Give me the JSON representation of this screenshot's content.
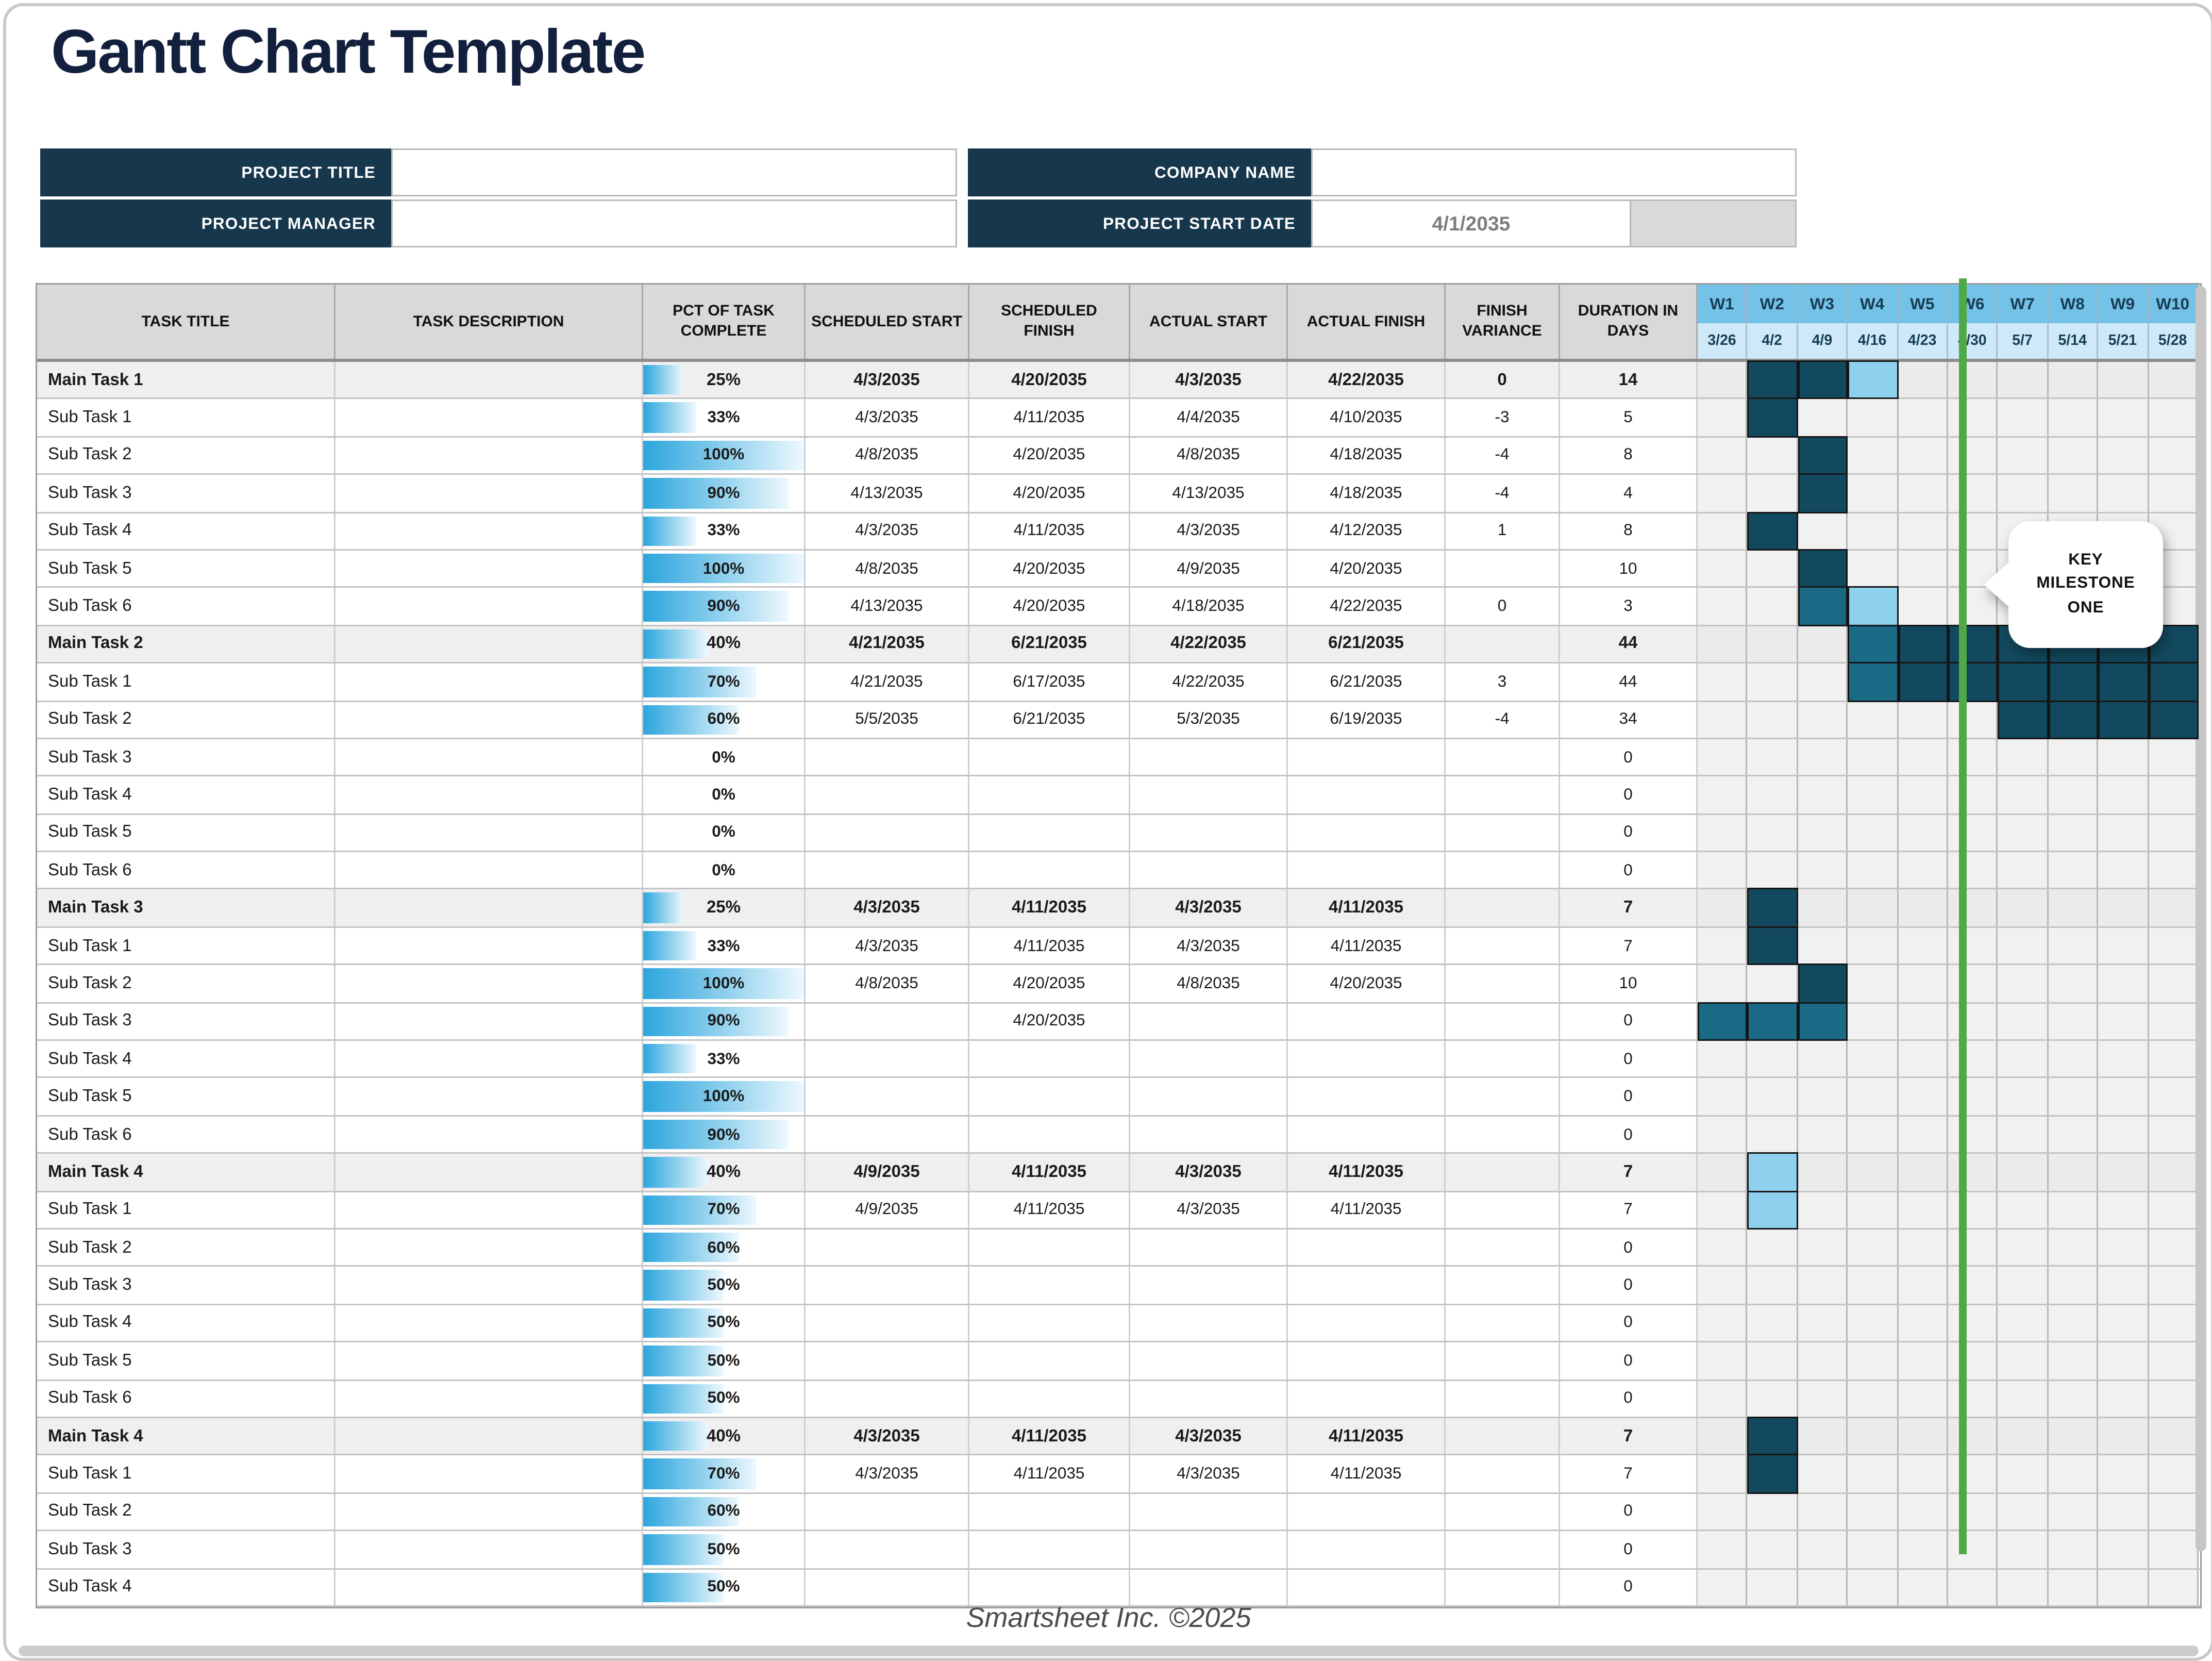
{
  "page": {
    "title": "Gantt Chart Template",
    "footer": "Smartsheet Inc. ©2025"
  },
  "info_panel": {
    "project_title_label": "PROJECT TITLE",
    "project_title_value": "",
    "project_manager_label": "PROJECT MANAGER",
    "project_manager_value": "",
    "company_name_label": "COMPANY NAME",
    "company_name_value": "",
    "project_start_date_label": "PROJECT START DATE",
    "project_start_date_value": "4/1/2035"
  },
  "milestone_callout": {
    "lines": [
      "KEY",
      "MILESTONE",
      "ONE"
    ]
  },
  "colors": {
    "accent_navy": "#17374c",
    "title_navy": "#13203d",
    "bar_dark": "#13495f",
    "bar_teal": "#1a6985",
    "bar_light": "#8ed0ee",
    "week_header_blue": "#74c2e8",
    "week_date_blue": "#cfe9f8",
    "today_line_green": "#4fa946",
    "pct_bar_blue": "#2ca5dd",
    "header_gray": "#d9d9d9"
  },
  "table": {
    "columns": [
      "TASK TITLE",
      "TASK DESCRIPTION",
      "PCT OF TASK COMPLETE",
      "SCHEDULED START",
      "SCHEDULED FINISH",
      "ACTUAL START",
      "ACTUAL FINISH",
      "FINISH VARIANCE",
      "DURATION IN DAYS"
    ],
    "weeks": [
      {
        "label": "W1",
        "date": "3/26"
      },
      {
        "label": "W2",
        "date": "4/2"
      },
      {
        "label": "W3",
        "date": "4/9"
      },
      {
        "label": "W4",
        "date": "4/16"
      },
      {
        "label": "W5",
        "date": "4/23"
      },
      {
        "label": "W6",
        "date": "4/30"
      },
      {
        "label": "W7",
        "date": "5/7"
      },
      {
        "label": "W8",
        "date": "5/14"
      },
      {
        "label": "W9",
        "date": "5/21"
      },
      {
        "label": "W10",
        "date": "5/28"
      }
    ],
    "rows": [
      {
        "title": "Main Task 1",
        "level": "main",
        "pct": 25,
        "sched_start": "4/3/2035",
        "sched_finish": "4/20/2035",
        "actual_start": "4/3/2035",
        "actual_finish": "4/22/2035",
        "variance": "0",
        "duration": "14",
        "bars": [
          [
            2,
            "dark"
          ],
          [
            3,
            "dark"
          ],
          [
            4,
            "light"
          ]
        ]
      },
      {
        "title": "Sub Task 1",
        "level": "sub",
        "pct": 33,
        "sched_start": "4/3/2035",
        "sched_finish": "4/11/2035",
        "actual_start": "4/4/2035",
        "actual_finish": "4/10/2035",
        "variance": "-3",
        "duration": "5",
        "bars": [
          [
            2,
            "dark"
          ]
        ]
      },
      {
        "title": "Sub Task 2",
        "level": "sub",
        "pct": 100,
        "sched_start": "4/8/2035",
        "sched_finish": "4/20/2035",
        "actual_start": "4/8/2035",
        "actual_finish": "4/18/2035",
        "variance": "-4",
        "duration": "8",
        "bars": [
          [
            3,
            "dark"
          ]
        ]
      },
      {
        "title": "Sub Task 3",
        "level": "sub",
        "pct": 90,
        "sched_start": "4/13/2035",
        "sched_finish": "4/20/2035",
        "actual_start": "4/13/2035",
        "actual_finish": "4/18/2035",
        "variance": "-4",
        "duration": "4",
        "bars": [
          [
            3,
            "dark"
          ]
        ]
      },
      {
        "title": "Sub Task 4",
        "level": "sub",
        "pct": 33,
        "sched_start": "4/3/2035",
        "sched_finish": "4/11/2035",
        "actual_start": "4/3/2035",
        "actual_finish": "4/12/2035",
        "variance": "1",
        "duration": "8",
        "bars": [
          [
            2,
            "dark"
          ]
        ]
      },
      {
        "title": "Sub Task 5",
        "level": "sub",
        "pct": 100,
        "sched_start": "4/8/2035",
        "sched_finish": "4/20/2035",
        "actual_start": "4/9/2035",
        "actual_finish": "4/20/2035",
        "variance": "",
        "duration": "10",
        "bars": [
          [
            3,
            "dark"
          ]
        ]
      },
      {
        "title": "Sub Task 6",
        "level": "sub",
        "pct": 90,
        "sched_start": "4/13/2035",
        "sched_finish": "4/20/2035",
        "actual_start": "4/18/2035",
        "actual_finish": "4/22/2035",
        "variance": "0",
        "duration": "3",
        "bars": [
          [
            3,
            "teal"
          ],
          [
            4,
            "light"
          ]
        ]
      },
      {
        "title": "Main Task 2",
        "level": "main",
        "pct": 40,
        "sched_start": "4/21/2035",
        "sched_finish": "6/21/2035",
        "actual_start": "4/22/2035",
        "actual_finish": "6/21/2035",
        "variance": "",
        "duration": "44",
        "bars": [
          [
            4,
            "teal"
          ],
          [
            5,
            "dark"
          ],
          [
            6,
            "dark"
          ],
          [
            7,
            "dark"
          ],
          [
            8,
            "dark"
          ],
          [
            9,
            "dark"
          ],
          [
            10,
            "dark"
          ]
        ]
      },
      {
        "title": "Sub Task 1",
        "level": "sub",
        "pct": 70,
        "sched_start": "4/21/2035",
        "sched_finish": "6/17/2035",
        "actual_start": "4/22/2035",
        "actual_finish": "6/21/2035",
        "variance": "3",
        "duration": "44",
        "bars": [
          [
            4,
            "teal"
          ],
          [
            5,
            "dark"
          ],
          [
            6,
            "dark"
          ],
          [
            7,
            "dark"
          ],
          [
            8,
            "dark"
          ],
          [
            9,
            "dark"
          ],
          [
            10,
            "dark"
          ]
        ]
      },
      {
        "title": "Sub Task 2",
        "level": "sub",
        "pct": 60,
        "sched_start": "5/5/2035",
        "sched_finish": "6/21/2035",
        "actual_start": "5/3/2035",
        "actual_finish": "6/19/2035",
        "variance": "-4",
        "duration": "34",
        "bars": [
          [
            7,
            "dark"
          ],
          [
            8,
            "dark"
          ],
          [
            9,
            "dark"
          ],
          [
            10,
            "dark"
          ]
        ]
      },
      {
        "title": "Sub Task 3",
        "level": "sub",
        "pct": 0,
        "sched_start": "",
        "sched_finish": "",
        "actual_start": "",
        "actual_finish": "",
        "variance": "",
        "duration": "0",
        "bars": []
      },
      {
        "title": "Sub Task 4",
        "level": "sub",
        "pct": 0,
        "sched_start": "",
        "sched_finish": "",
        "actual_start": "",
        "actual_finish": "",
        "variance": "",
        "duration": "0",
        "bars": []
      },
      {
        "title": "Sub Task 5",
        "level": "sub",
        "pct": 0,
        "sched_start": "",
        "sched_finish": "",
        "actual_start": "",
        "actual_finish": "",
        "variance": "",
        "duration": "0",
        "bars": []
      },
      {
        "title": "Sub Task 6",
        "level": "sub",
        "pct": 0,
        "sched_start": "",
        "sched_finish": "",
        "actual_start": "",
        "actual_finish": "",
        "variance": "",
        "duration": "0",
        "bars": []
      },
      {
        "title": "Main Task 3",
        "level": "main",
        "pct": 25,
        "sched_start": "4/3/2035",
        "sched_finish": "4/11/2035",
        "actual_start": "4/3/2035",
        "actual_finish": "4/11/2035",
        "variance": "",
        "duration": "7",
        "bars": [
          [
            2,
            "dark"
          ]
        ]
      },
      {
        "title": "Sub Task 1",
        "level": "sub",
        "pct": 33,
        "sched_start": "4/3/2035",
        "sched_finish": "4/11/2035",
        "actual_start": "4/3/2035",
        "actual_finish": "4/11/2035",
        "variance": "",
        "duration": "7",
        "bars": [
          [
            2,
            "dark"
          ]
        ]
      },
      {
        "title": "Sub Task 2",
        "level": "sub",
        "pct": 100,
        "sched_start": "4/8/2035",
        "sched_finish": "4/20/2035",
        "actual_start": "4/8/2035",
        "actual_finish": "4/20/2035",
        "variance": "",
        "duration": "10",
        "bars": [
          [
            3,
            "dark"
          ]
        ]
      },
      {
        "title": "Sub Task 3",
        "level": "sub",
        "pct": 90,
        "sched_start": "",
        "sched_finish": "4/20/2035",
        "actual_start": "",
        "actual_finish": "",
        "variance": "",
        "duration": "0",
        "bars": [
          [
            1,
            "teal"
          ],
          [
            2,
            "teal"
          ],
          [
            3,
            "teal"
          ]
        ]
      },
      {
        "title": "Sub Task 4",
        "level": "sub",
        "pct": 33,
        "sched_start": "",
        "sched_finish": "",
        "actual_start": "",
        "actual_finish": "",
        "variance": "",
        "duration": "0",
        "bars": []
      },
      {
        "title": "Sub Task 5",
        "level": "sub",
        "pct": 100,
        "sched_start": "",
        "sched_finish": "",
        "actual_start": "",
        "actual_finish": "",
        "variance": "",
        "duration": "0",
        "bars": []
      },
      {
        "title": "Sub Task 6",
        "level": "sub",
        "pct": 90,
        "sched_start": "",
        "sched_finish": "",
        "actual_start": "",
        "actual_finish": "",
        "variance": "",
        "duration": "0",
        "bars": []
      },
      {
        "title": "Main Task 4",
        "level": "main",
        "pct": 40,
        "sched_start": "4/9/2035",
        "sched_finish": "4/11/2035",
        "actual_start": "4/3/2035",
        "actual_finish": "4/11/2035",
        "variance": "",
        "duration": "7",
        "bars": [
          [
            2,
            "light"
          ]
        ]
      },
      {
        "title": "Sub Task 1",
        "level": "sub",
        "pct": 70,
        "sched_start": "4/9/2035",
        "sched_finish": "4/11/2035",
        "actual_start": "4/3/2035",
        "actual_finish": "4/11/2035",
        "variance": "",
        "duration": "7",
        "bars": [
          [
            2,
            "light"
          ]
        ]
      },
      {
        "title": "Sub Task 2",
        "level": "sub",
        "pct": 60,
        "sched_start": "",
        "sched_finish": "",
        "actual_start": "",
        "actual_finish": "",
        "variance": "",
        "duration": "0",
        "bars": []
      },
      {
        "title": "Sub Task 3",
        "level": "sub",
        "pct": 50,
        "sched_start": "",
        "sched_finish": "",
        "actual_start": "",
        "actual_finish": "",
        "variance": "",
        "duration": "0",
        "bars": []
      },
      {
        "title": "Sub Task 4",
        "level": "sub",
        "pct": 50,
        "sched_start": "",
        "sched_finish": "",
        "actual_start": "",
        "actual_finish": "",
        "variance": "",
        "duration": "0",
        "bars": []
      },
      {
        "title": "Sub Task 5",
        "level": "sub",
        "pct": 50,
        "sched_start": "",
        "sched_finish": "",
        "actual_start": "",
        "actual_finish": "",
        "variance": "",
        "duration": "0",
        "bars": []
      },
      {
        "title": "Sub Task 6",
        "level": "sub",
        "pct": 50,
        "sched_start": "",
        "sched_finish": "",
        "actual_start": "",
        "actual_finish": "",
        "variance": "",
        "duration": "0",
        "bars": []
      },
      {
        "title": "Main Task 4",
        "level": "main",
        "pct": 40,
        "sched_start": "4/3/2035",
        "sched_finish": "4/11/2035",
        "actual_start": "4/3/2035",
        "actual_finish": "4/11/2035",
        "variance": "",
        "duration": "7",
        "bars": [
          [
            2,
            "dark"
          ]
        ]
      },
      {
        "title": "Sub Task 1",
        "level": "sub",
        "pct": 70,
        "sched_start": "4/3/2035",
        "sched_finish": "4/11/2035",
        "actual_start": "4/3/2035",
        "actual_finish": "4/11/2035",
        "variance": "",
        "duration": "7",
        "bars": [
          [
            2,
            "dark"
          ]
        ]
      },
      {
        "title": "Sub Task 2",
        "level": "sub",
        "pct": 60,
        "sched_start": "",
        "sched_finish": "",
        "actual_start": "",
        "actual_finish": "",
        "variance": "",
        "duration": "0",
        "bars": []
      },
      {
        "title": "Sub Task 3",
        "level": "sub",
        "pct": 50,
        "sched_start": "",
        "sched_finish": "",
        "actual_start": "",
        "actual_finish": "",
        "variance": "",
        "duration": "0",
        "bars": []
      },
      {
        "title": "Sub Task 4",
        "level": "sub",
        "pct": 50,
        "sched_start": "",
        "sched_finish": "",
        "actual_start": "",
        "actual_finish": "",
        "variance": "",
        "duration": "0",
        "bars": []
      }
    ]
  }
}
